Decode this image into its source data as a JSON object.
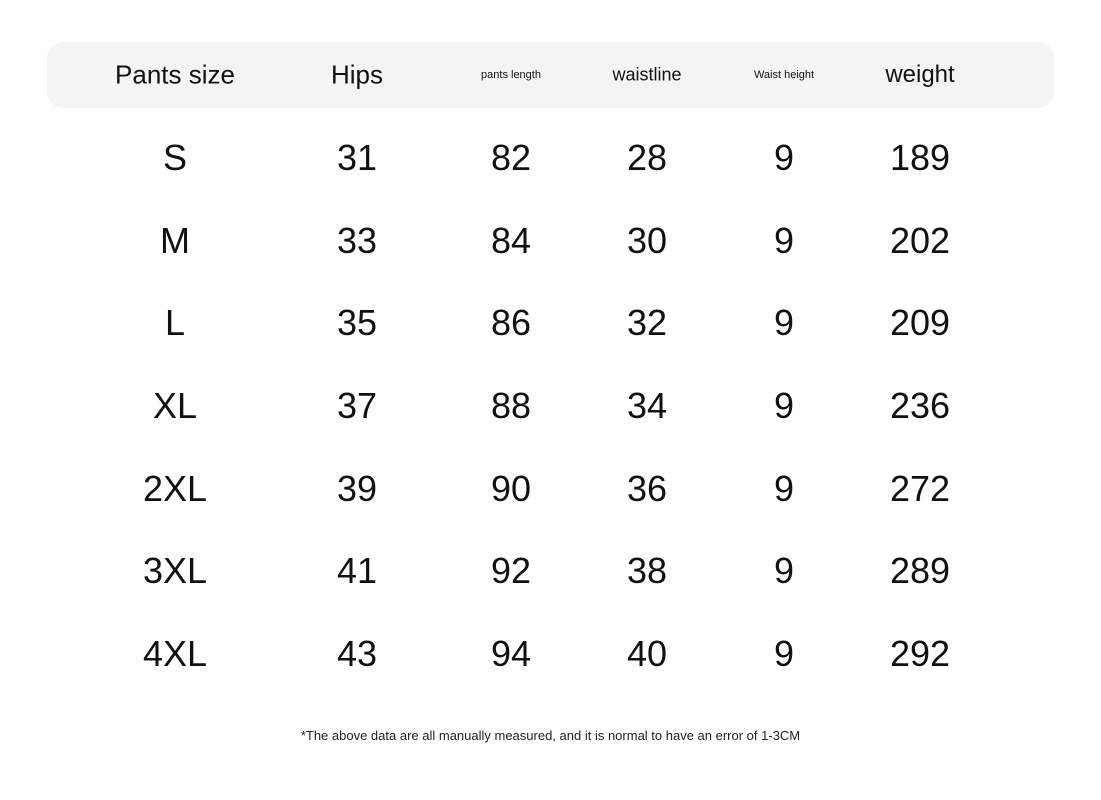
{
  "table": {
    "headers": [
      "Pants size",
      "Hips",
      "pants length",
      "waistline",
      "Waist height",
      "weight"
    ],
    "rows": [
      [
        "S",
        "31",
        "82",
        "28",
        "9",
        "189"
      ],
      [
        "M",
        "33",
        "84",
        "30",
        "9",
        "202"
      ],
      [
        "L",
        "35",
        "86",
        "32",
        "9",
        "209"
      ],
      [
        "XL",
        "37",
        "88",
        "34",
        "9",
        "236"
      ],
      [
        "2XL",
        "39",
        "90",
        "36",
        "9",
        "272"
      ],
      [
        "3XL",
        "41",
        "92",
        "38",
        "9",
        "289"
      ],
      [
        "4XL",
        "43",
        "94",
        "40",
        "9",
        "292"
      ]
    ]
  },
  "note": "*The above data are all manually measured, and it is normal to have an error of 1-3CM",
  "colors": {
    "header_bg": "#f4f4f4",
    "text": "#111111"
  }
}
